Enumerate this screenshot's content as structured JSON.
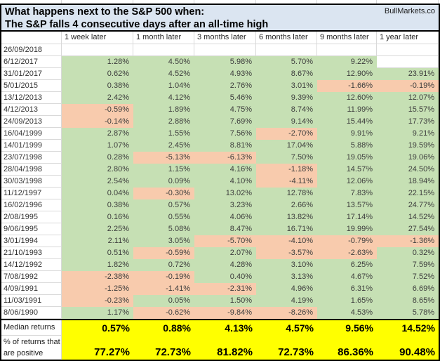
{
  "chart_data": {
    "type": "table",
    "title": "What happens next to the S&P 500 when:",
    "subtitle": "The S&P falls 4 consecutive days after an all-time high",
    "watermark": "BullMarkets.co",
    "columns": [
      "1 week later",
      "1 month later",
      "3 months later",
      "6 months later",
      "9 months later",
      "1 year later"
    ],
    "rows": [
      {
        "date": "26/09/2018",
        "values": [
          "",
          "",
          "",
          "",
          "",
          ""
        ]
      },
      {
        "date": "6/12/2017",
        "values": [
          "1.28%",
          "4.50%",
          "5.98%",
          "5.70%",
          "9.22%",
          ""
        ]
      },
      {
        "date": "31/01/2017",
        "values": [
          "0.62%",
          "4.52%",
          "4.93%",
          "8.67%",
          "12.90%",
          "23.91%"
        ]
      },
      {
        "date": "5/01/2015",
        "values": [
          "0.38%",
          "1.04%",
          "2.76%",
          "3.01%",
          "-1.66%",
          "-0.19%"
        ]
      },
      {
        "date": "13/12/2013",
        "values": [
          "2.42%",
          "4.12%",
          "5.46%",
          "9.39%",
          "12.60%",
          "12.07%"
        ]
      },
      {
        "date": "4/12/2013",
        "values": [
          "-0.59%",
          "1.89%",
          "4.75%",
          "8.74%",
          "11.99%",
          "15.57%"
        ]
      },
      {
        "date": "24/09/2013",
        "values": [
          "-0.14%",
          "2.88%",
          "7.69%",
          "9.14%",
          "15.44%",
          "17.73%"
        ]
      },
      {
        "date": "16/04/1999",
        "values": [
          "2.87%",
          "1.55%",
          "7.56%",
          "-2.70%",
          "9.91%",
          "9.21%"
        ]
      },
      {
        "date": "14/01/1999",
        "values": [
          "1.07%",
          "2.45%",
          "8.81%",
          "17.04%",
          "5.88%",
          "19.59%"
        ]
      },
      {
        "date": "23/07/1998",
        "values": [
          "0.28%",
          "-5.13%",
          "-6.13%",
          "7.50%",
          "19.05%",
          "19.06%"
        ]
      },
      {
        "date": "28/04/1998",
        "values": [
          "2.80%",
          "1.15%",
          "4.16%",
          "-1.18%",
          "14.57%",
          "24.50%"
        ]
      },
      {
        "date": "30/03/1998",
        "values": [
          "2.54%",
          "0.09%",
          "4.10%",
          "-4.11%",
          "12.06%",
          "18.94%"
        ]
      },
      {
        "date": "11/12/1997",
        "values": [
          "0.04%",
          "-0.30%",
          "13.02%",
          "12.78%",
          "7.83%",
          "22.15%"
        ]
      },
      {
        "date": "16/02/1996",
        "values": [
          "0.38%",
          "0.57%",
          "3.23%",
          "2.66%",
          "13.57%",
          "24.77%"
        ]
      },
      {
        "date": "2/08/1995",
        "values": [
          "0.16%",
          "0.55%",
          "4.06%",
          "13.82%",
          "17.14%",
          "14.52%"
        ]
      },
      {
        "date": "9/06/1995",
        "values": [
          "2.25%",
          "5.08%",
          "8.47%",
          "16.71%",
          "19.99%",
          "27.54%"
        ]
      },
      {
        "date": "3/01/1994",
        "values": [
          "2.11%",
          "3.05%",
          "-5.70%",
          "-4.10%",
          "-0.79%",
          "-1.36%"
        ]
      },
      {
        "date": "21/10/1993",
        "values": [
          "0.51%",
          "-0.59%",
          "2.07%",
          "-3.57%",
          "-2.63%",
          "0.32%"
        ]
      },
      {
        "date": "14/12/1992",
        "values": [
          "1.82%",
          "0.72%",
          "4.28%",
          "3.10%",
          "6.25%",
          "7.59%"
        ]
      },
      {
        "date": "7/08/1992",
        "values": [
          "-2.38%",
          "-0.19%",
          "0.40%",
          "3.13%",
          "4.67%",
          "7.52%"
        ]
      },
      {
        "date": "4/09/1991",
        "values": [
          "-1.25%",
          "-1.41%",
          "-2.31%",
          "4.96%",
          "6.31%",
          "6.69%"
        ]
      },
      {
        "date": "11/03/1991",
        "values": [
          "-0.23%",
          "0.05%",
          "1.50%",
          "4.19%",
          "1.65%",
          "8.65%"
        ]
      },
      {
        "date": "8/06/1990",
        "values": [
          "1.17%",
          "-0.62%",
          "-9.84%",
          "-8.26%",
          "4.53%",
          "5.78%"
        ]
      }
    ],
    "summary": {
      "median_label": "Median returns",
      "median_values": [
        "0.57%",
        "0.88%",
        "4.13%",
        "4.57%",
        "9.56%",
        "14.52%"
      ],
      "positive_label_line1": "% of returns that",
      "positive_label_line2": "are positive",
      "positive_values": [
        "77.27%",
        "72.73%",
        "81.82%",
        "72.73%",
        "86.36%",
        "90.48%"
      ]
    },
    "layout_hints": {
      "grid": true,
      "legend": "none",
      "color_rule": "positive=green, negative=salmon, summary=yellow"
    },
    "colors": {
      "positive_bg": "#c6e0b4",
      "negative_bg": "#f8cbad",
      "summary_bg": "#ffff00",
      "title_bg": "#dbe5f1",
      "gridline": "#d9d9d9",
      "border": "#000000"
    }
  }
}
